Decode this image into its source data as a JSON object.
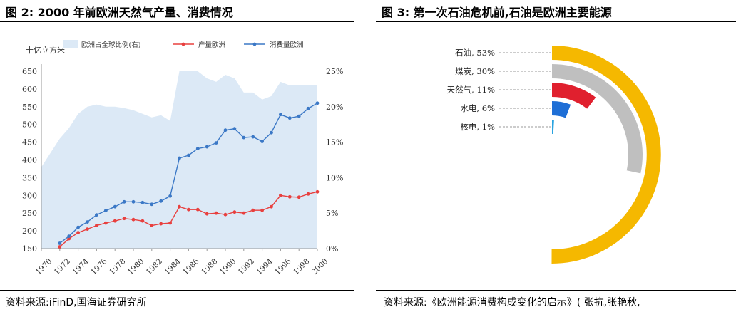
{
  "figure2": {
    "title": "图 2:  2000 年前欧洲天然气产量、消费情况",
    "source": "资料来源:iFinD,国海证券研究所"
  },
  "figure3": {
    "title": "图 3:  第一次石油危机前,石油是欧洲主要能源",
    "source": "资料来源:《欧洲能源消费构成变化的启示》( 张抗,张艳秋,"
  },
  "colors": {
    "area": "#dce9f6",
    "production": "#e8403f",
    "consumption": "#3b78c6",
    "oil": "#f5b800",
    "coal": "#bfbfbf",
    "gas": "#e0202e",
    "hydro": "#1f6fd6",
    "nuclear": "#29a3e0"
  },
  "chart_data": [
    {
      "type": "line",
      "unit_label": "十亿立方米",
      "x": [
        1970,
        1971,
        1972,
        1973,
        1974,
        1975,
        1976,
        1977,
        1978,
        1979,
        1980,
        1981,
        1982,
        1983,
        1984,
        1985,
        1986,
        1987,
        1988,
        1989,
        1990,
        1991,
        1992,
        1993,
        1994,
        1995,
        1996,
        1997,
        1998,
        1999,
        2000
      ],
      "x_tick_labels": [
        "1970",
        "1972",
        "1974",
        "1976",
        "1978",
        "1980",
        "1982",
        "1984",
        "1986",
        "1988",
        "1990",
        "1992",
        "1994",
        "1996",
        "1998",
        "2000"
      ],
      "ylim": [
        150,
        650
      ],
      "y_ticks": [
        "150",
        "200",
        "250",
        "300",
        "350",
        "400",
        "450",
        "500",
        "550",
        "600",
        "650"
      ],
      "y2lim": [
        0,
        25
      ],
      "y2_ticks": [
        "0%",
        "5%",
        "10%",
        "15%",
        "20%",
        "25%"
      ],
      "legend_placement": "top",
      "grid": false,
      "series": [
        {
          "name": "欧洲占全球比例(右)",
          "kind": "area",
          "axis": "right",
          "values": [
            11.5,
            13.5,
            15.5,
            17.0,
            19.0,
            20.0,
            20.3,
            20.0,
            20.0,
            19.8,
            19.5,
            19.0,
            18.5,
            18.8,
            18.0,
            25.0,
            25.0,
            25.0,
            24.0,
            23.5,
            24.5,
            24.0,
            22.0,
            22.0,
            21.0,
            21.5,
            23.5,
            23.0,
            23.0,
            23.0,
            23.0
          ]
        },
        {
          "name": "产量欧洲",
          "kind": "line",
          "axis": "left",
          "values": [
            null,
            null,
            155,
            178,
            195,
            205,
            215,
            222,
            228,
            235,
            232,
            228,
            215,
            220,
            222,
            268,
            260,
            260,
            248,
            250,
            246,
            253,
            250,
            258,
            258,
            268,
            300,
            296,
            295,
            304,
            310
          ]
        },
        {
          "name": "消费量欧洲",
          "kind": "line",
          "axis": "left",
          "values": [
            null,
            null,
            165,
            185,
            210,
            225,
            245,
            257,
            268,
            282,
            282,
            280,
            275,
            284,
            298,
            405,
            413,
            432,
            437,
            448,
            484,
            488,
            463,
            465,
            452,
            477,
            528,
            518,
            523,
            545,
            560
          ]
        }
      ]
    },
    {
      "type": "pie",
      "variant": "radial-bar",
      "categories": [
        "石油, 53%",
        "煤炭, 30%",
        "天然气, 11%",
        "水电, 6%",
        "核电, 1%"
      ],
      "values": [
        53,
        30,
        11,
        6,
        1
      ]
    }
  ]
}
